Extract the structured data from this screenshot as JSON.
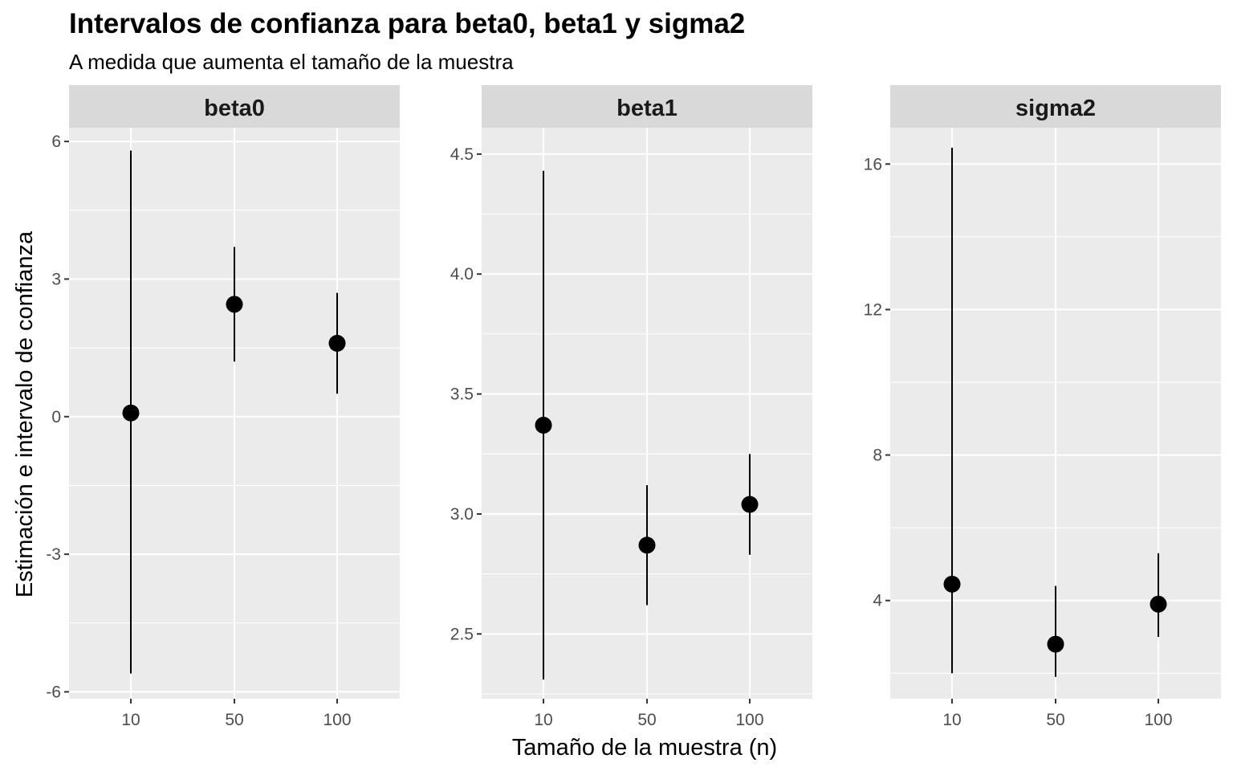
{
  "chart_data": {
    "type": "scatter",
    "title": "Intervalos de confianza para beta0, beta1 y sigma2",
    "subtitle": "A medida que aumenta el tamaño de la muestra",
    "xlabel": "Tamaño de la muestra (n)",
    "ylabel": "Estimación e intervalo de confianza",
    "categories": [
      "10",
      "50",
      "100"
    ],
    "grid": true,
    "facets": [
      {
        "name": "beta0",
        "ylim": [
          -6.15,
          6.3
        ],
        "yticks": [
          6,
          3,
          0,
          -3,
          -6
        ],
        "tick_labels": [
          "6",
          "3",
          "0",
          "-3",
          "-6"
        ],
        "points": [
          {
            "x": "10",
            "estimate": 0.08,
            "lower": -5.6,
            "upper": 5.8
          },
          {
            "x": "50",
            "estimate": 2.45,
            "lower": 1.2,
            "upper": 3.7
          },
          {
            "x": "100",
            "estimate": 1.6,
            "lower": 0.5,
            "upper": 2.7
          }
        ]
      },
      {
        "name": "beta1",
        "ylim": [
          2.23,
          4.61
        ],
        "yticks": [
          4.5,
          4.0,
          3.5,
          3.0,
          2.5
        ],
        "tick_labels": [
          "4.5",
          "4.0",
          "3.5",
          "3.0",
          "2.5"
        ],
        "points": [
          {
            "x": "10",
            "estimate": 3.37,
            "lower": 2.31,
            "upper": 4.43
          },
          {
            "x": "50",
            "estimate": 2.87,
            "lower": 2.62,
            "upper": 3.12
          },
          {
            "x": "100",
            "estimate": 3.04,
            "lower": 2.83,
            "upper": 3.25
          }
        ]
      },
      {
        "name": "sigma2",
        "ylim": [
          1.3,
          17.0
        ],
        "yticks": [
          16,
          12,
          8,
          4
        ],
        "tick_labels": [
          "16",
          "12",
          "8",
          "4"
        ],
        "points": [
          {
            "x": "10",
            "estimate": 4.45,
            "lower": 2.0,
            "upper": 16.45
          },
          {
            "x": "50",
            "estimate": 2.8,
            "lower": 1.9,
            "upper": 4.4
          },
          {
            "x": "100",
            "estimate": 3.9,
            "lower": 3.0,
            "upper": 5.3
          }
        ]
      }
    ]
  },
  "colors": {
    "panel_background": "#ebebeb",
    "strip_background": "#d9d9d9",
    "grid": "#ffffff",
    "point": "#000000",
    "tick_text": "#4d4d4d"
  }
}
